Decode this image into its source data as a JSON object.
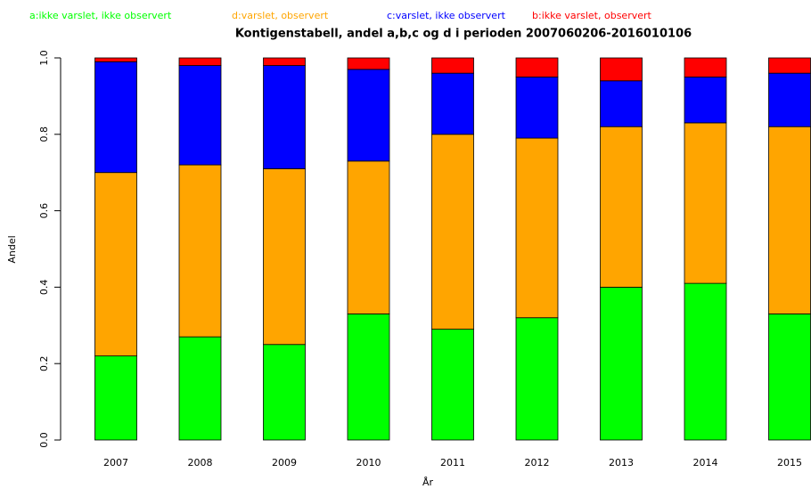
{
  "chart_data": {
    "type": "stacked-bar",
    "title": "Kontigenstabell, andel a,b,c og d i perioden 2007060206-2016010106",
    "x_label": "År",
    "y_label": "Andel",
    "categories": [
      "2007",
      "2008",
      "2009",
      "2010",
      "2011",
      "2012",
      "2013",
      "2014",
      "2015"
    ],
    "series": [
      {
        "name": "a:ikke varslet, ikke observert",
        "color": "#00ff00",
        "values": [
          0.22,
          0.27,
          0.25,
          0.33,
          0.29,
          0.32,
          0.4,
          0.41,
          0.33
        ]
      },
      {
        "name": "d:varslet, observert",
        "color": "#ffa500",
        "values": [
          0.48,
          0.45,
          0.46,
          0.4,
          0.51,
          0.47,
          0.42,
          0.42,
          0.49
        ]
      },
      {
        "name": "c:varslet, ikke observert",
        "color": "#0000ff",
        "values": [
          0.29,
          0.26,
          0.27,
          0.24,
          0.16,
          0.16,
          0.12,
          0.12,
          0.14
        ]
      },
      {
        "name": "b:ikke varslet, observert",
        "color": "#ff0000",
        "values": [
          0.01,
          0.02,
          0.02,
          0.03,
          0.04,
          0.05,
          0.06,
          0.05,
          0.04
        ]
      }
    ],
    "ylim": [
      0,
      1
    ],
    "yticks": [
      {
        "value": 0,
        "label": "0.0"
      },
      0.2,
      0.4,
      0.6,
      0.8,
      {
        "value": 1,
        "label": "1.0"
      }
    ],
    "legend": "top"
  }
}
